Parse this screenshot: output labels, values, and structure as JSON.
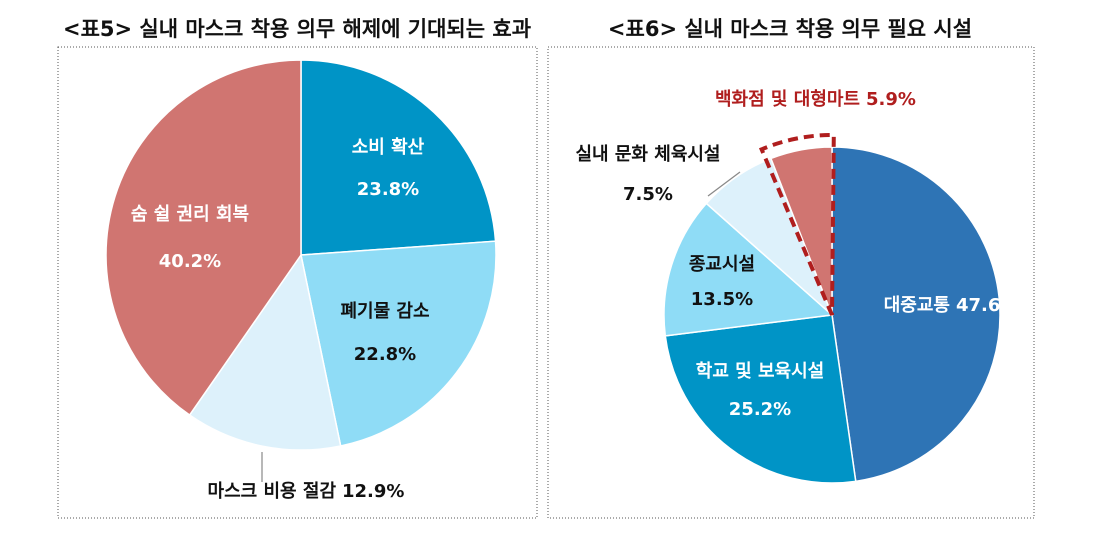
{
  "chart_data": [
    {
      "type": "pie",
      "title": "<표5> 실내 마스크 착용 의무 해제에 기대되는 효과",
      "categories": [
        "소비 확산",
        "폐기물 감소",
        "마스크 비용 절감",
        "숨 쉴 권리 회복"
      ],
      "values": [
        23.8,
        22.8,
        12.9,
        40.2
      ],
      "value_labels": [
        "23.8%",
        "22.8%",
        "12.9%",
        "40.2%"
      ],
      "colors": [
        "#0094c6",
        "#8fdcf6",
        "#ddf1fb",
        "#d07571"
      ]
    },
    {
      "type": "pie",
      "title": "<표6> 실내 마스크 착용 의무 필요 시설",
      "categories": [
        "대중교통",
        "학교 및 보육시설",
        "종교시설",
        "실내 문화 체육시설",
        "백화점 및 대형마트"
      ],
      "values": [
        47.6,
        25.2,
        13.5,
        7.5,
        5.9
      ],
      "value_labels": [
        "47.6%",
        "25.2%",
        "13.5%",
        "7.5%",
        "5.9%"
      ],
      "colors": [
        "#2e74b5",
        "#0094c6",
        "#8fdcf6",
        "#ddf1fb",
        "#d07571"
      ],
      "highlight": 4
    }
  ]
}
